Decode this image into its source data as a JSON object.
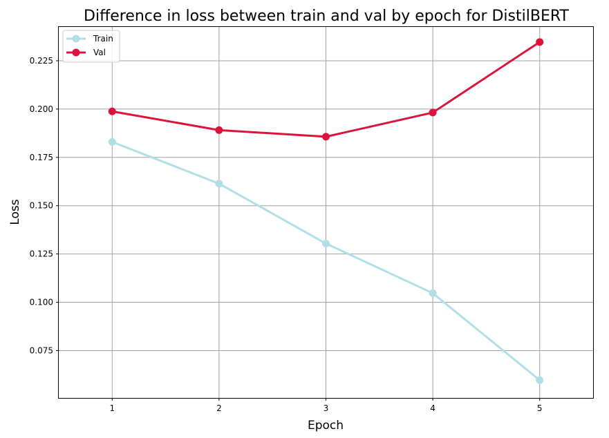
{
  "chart_data": {
    "type": "line",
    "title": "Difference in loss between train and val by epoch for DistilBERT",
    "xlabel": "Epoch",
    "ylabel": "Loss",
    "x": [
      1,
      2,
      3,
      4,
      5
    ],
    "xticks": [
      "1",
      "2",
      "3",
      "4",
      "5"
    ],
    "yticks": [
      "0.075",
      "0.100",
      "0.125",
      "0.150",
      "0.175",
      "0.200",
      "0.225"
    ],
    "xlim": [
      0.5,
      5.5
    ],
    "ylim": [
      0.0505,
      0.2425
    ],
    "grid": true,
    "legend_position": "top-left",
    "series": [
      {
        "name": "Train",
        "color": "#b0e0e6",
        "values": [
          0.183,
          0.1614,
          0.1304,
          0.1047,
          0.0597
        ]
      },
      {
        "name": "Val",
        "color": "#dc143c",
        "values": [
          0.1988,
          0.1891,
          0.1857,
          0.1982,
          0.2347
        ]
      }
    ]
  }
}
